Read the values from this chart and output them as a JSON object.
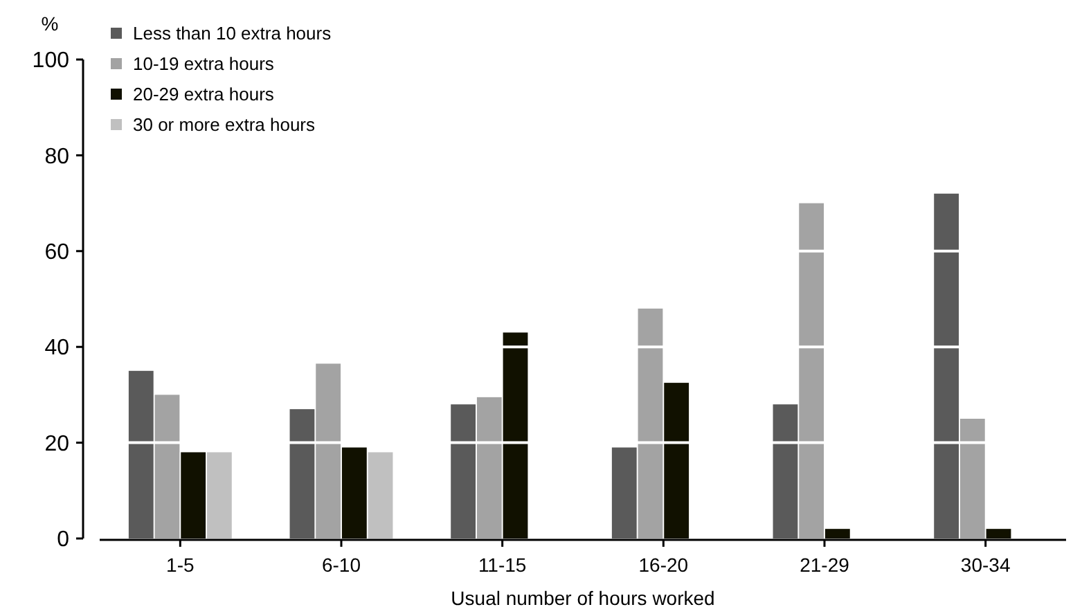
{
  "chart_data": {
    "type": "bar",
    "ylabel": "%",
    "xlabel": "Usual number of hours worked",
    "categories": [
      "1-5",
      "6-10",
      "11-15",
      "16-20",
      "21-29",
      "30-34"
    ],
    "series": [
      {
        "name": "Less than 10 extra hours",
        "color": "#5a5a5a",
        "values": [
          35,
          27,
          28,
          19,
          28,
          72
        ]
      },
      {
        "name": "10-19 extra hours",
        "color": "#a3a3a3",
        "values": [
          30,
          36.5,
          29.5,
          48,
          70,
          25
        ]
      },
      {
        "name": "20-29 extra hours",
        "color": "#111100",
        "values": [
          18,
          19,
          43,
          32.5,
          2,
          2
        ]
      },
      {
        "name": "30 or more extra hours",
        "color": "#c0c0c0",
        "values": [
          18,
          18,
          null,
          null,
          null,
          null
        ]
      }
    ],
    "ylim": [
      0,
      100
    ],
    "yticks": [
      0,
      20,
      40,
      60,
      80,
      100
    ],
    "grid": "y",
    "legend": "top left"
  }
}
